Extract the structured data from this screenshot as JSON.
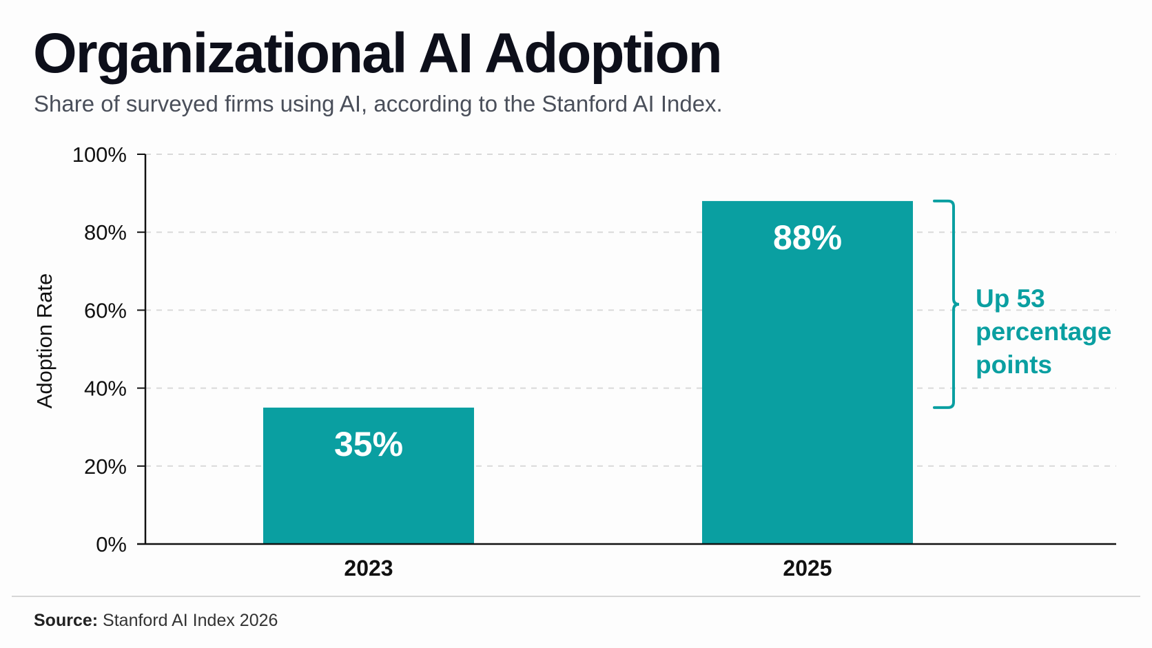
{
  "chart_data": {
    "type": "bar",
    "title": "Organizational AI Adoption",
    "subtitle": "Share of surveyed firms using AI, according to the Stanford AI Index.",
    "categories": [
      "2023",
      "2025"
    ],
    "values": [
      35,
      88
    ],
    "data_labels": [
      "35%",
      "88%"
    ],
    "xlabel": "",
    "ylabel": "Adoption Rate",
    "ylim": [
      0,
      100
    ],
    "yticks": [
      0,
      20,
      40,
      60,
      80,
      100
    ],
    "ytick_labels": [
      "0%",
      "20%",
      "40%",
      "60%",
      "80%",
      "100%"
    ],
    "grid": true,
    "annotation": {
      "lines": [
        "Up 53",
        "percentage",
        "points"
      ],
      "from": 35,
      "to": 88
    },
    "bar_color": "#0a9fa1",
    "source_label": "Source:",
    "source_text": "Stanford AI Index 2026"
  }
}
